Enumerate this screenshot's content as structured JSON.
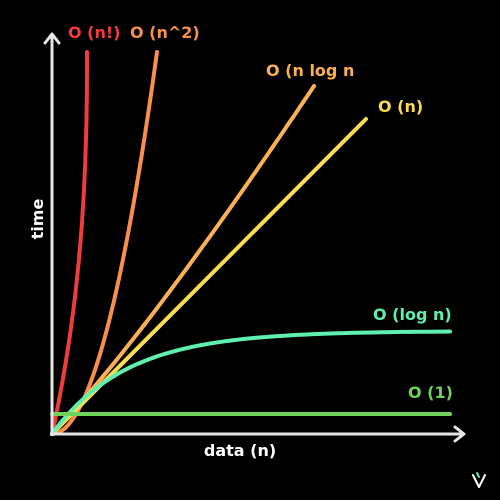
{
  "chart_data": {
    "type": "line",
    "xlabel": "data (n)",
    "ylabel": "time",
    "grid": false,
    "legend": "inline labels at curve ends",
    "background": "#000000",
    "axis_color": "#e6e6e6",
    "series": [
      {
        "name": "O (n!)",
        "function": "factorial",
        "color": "#f03c3c",
        "label_color": "#f03c3c"
      },
      {
        "name": "O (n^2)",
        "function": "quadratic",
        "color": "#f98f4c",
        "label_color": "#f98f4c"
      },
      {
        "name": "O (n log n",
        "function": "linearithmic",
        "color": "#fbb153",
        "label_color": "#fbb153"
      },
      {
        "name": "O (n)",
        "function": "linear",
        "color": "#fddc52",
        "label_color": "#fddc52"
      },
      {
        "name": "O (log n)",
        "function": "logarithmic",
        "color": "#5ff0b0",
        "label_color": "#5ff0b0"
      },
      {
        "name": "O (1)",
        "function": "constant",
        "color": "#6ed45a",
        "label_color": "#6ed45a"
      }
    ]
  },
  "brand": {
    "logo_icon": "v-logo-icon",
    "accent": "#5ff0b0"
  }
}
